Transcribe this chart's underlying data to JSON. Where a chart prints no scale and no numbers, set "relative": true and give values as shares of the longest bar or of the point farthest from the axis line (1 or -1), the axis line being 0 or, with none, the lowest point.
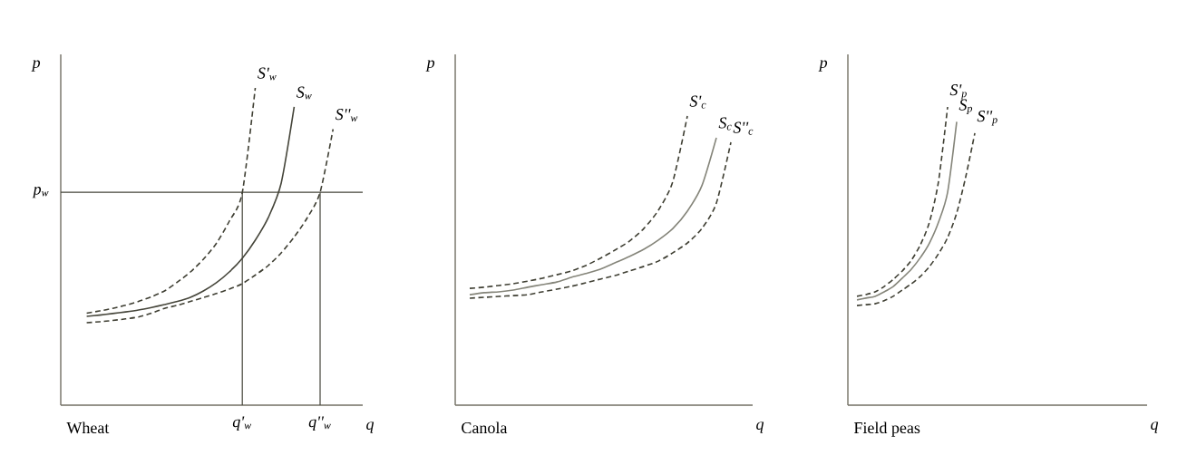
{
  "chart_data": [
    {
      "type": "line",
      "title": "Wheat",
      "xlabel": "q",
      "ylabel": "p",
      "relative": true,
      "categories": [
        null,
        null,
        null,
        null,
        null,
        null,
        null,
        null,
        null,
        null,
        null,
        null,
        null,
        null,
        "q'$_{w}$",
        null,
        null,
        null,
        null,
        null,
        "q''$_{w}$",
        null,
        null,
        null
      ],
      "series": [
        {
          "name": "S'$_{w}$",
          "color": "#3f3f33",
          "line_style": "dashed",
          "values": [
            null,
            null,
            0.29,
            0.297,
            0.305,
            0.315,
            0.327,
            0.342,
            0.36,
            0.388,
            0.42,
            0.46,
            0.51,
            0.58,
            0.67,
            1.0,
            null,
            null,
            null,
            null,
            null,
            null,
            null,
            null
          ]
        },
        {
          "name": "S$_{w}$",
          "color": "#45453a",
          "line_style": "solid",
          "values": [
            null,
            null,
            0.28,
            0.284,
            0.289,
            0.294,
            0.3,
            0.308,
            0.317,
            0.327,
            0.34,
            0.36,
            0.386,
            0.42,
            0.463,
            0.52,
            0.591,
            0.7,
            0.94,
            null,
            null,
            null,
            null,
            null
          ]
        },
        {
          "name": "S''$_{w}$",
          "color": "#3f3f33",
          "line_style": "dashed",
          "values": [
            null,
            null,
            0.26,
            0.263,
            0.267,
            0.272,
            0.278,
            0.29,
            0.305,
            0.315,
            0.327,
            0.339,
            0.352,
            0.366,
            0.383,
            0.41,
            0.44,
            0.48,
            0.53,
            0.59,
            0.671,
            0.87,
            null,
            null
          ]
        }
      ],
      "ref_lines": [
        {
          "axis": "y",
          "value": 0.671,
          "label": "p$_{w}$",
          "color": "#45453a"
        }
      ]
    },
    {
      "type": "line",
      "title": "Canola",
      "xlabel": "q",
      "ylabel": "p",
      "relative": true,
      "categories": [
        null,
        null,
        null,
        null,
        null,
        null,
        null,
        null,
        null,
        null,
        null,
        null,
        null,
        null,
        null,
        null,
        null,
        null,
        null,
        null,
        null
      ],
      "series": [
        {
          "name": "S'$_{c}$",
          "color": "#3f3f33",
          "line_style": "dashed",
          "values": [
            null,
            0.404,
            0.408,
            0.414,
            0.42,
            0.429,
            0.439,
            0.451,
            0.464,
            0.483,
            0.508,
            0.536,
            0.567,
            0.611,
            0.674,
            0.774,
            1.0,
            null,
            null,
            null,
            null
          ]
        },
        {
          "name": "S$_{c}$",
          "color": "#85857a",
          "line_style": "solid",
          "values": [
            null,
            0.382,
            0.389,
            0.392,
            0.398,
            0.408,
            0.417,
            0.426,
            0.442,
            0.455,
            0.47,
            0.492,
            0.514,
            0.539,
            0.571,
            0.611,
            0.671,
            0.759,
            0.925,
            null,
            null
          ]
        },
        {
          "name": "S''$_{c}$",
          "color": "#3f3f33",
          "line_style": "dashed",
          "values": [
            null,
            0.37,
            0.373,
            0.376,
            0.379,
            0.382,
            0.392,
            0.401,
            0.411,
            0.423,
            0.436,
            0.448,
            0.464,
            0.48,
            0.498,
            0.527,
            0.561,
            0.611,
            0.699,
            0.909,
            null
          ]
        }
      ]
    },
    {
      "type": "line",
      "title": "Field peas",
      "xlabel": "q",
      "ylabel": "p",
      "relative": true,
      "categories": [
        null,
        null,
        null,
        null,
        null,
        null,
        null,
        null,
        null,
        null,
        null,
        null,
        null,
        null,
        null,
        null,
        null,
        null,
        null,
        null,
        null,
        null,
        null,
        null,
        null,
        null,
        null,
        null,
        null,
        null,
        null,
        null,
        null,
        null
      ],
      "series": [
        {
          "name": "S'$_{p}$",
          "color": "#3f3f33",
          "line_style": "dashed",
          "values": [
            null,
            0.365,
            0.371,
            0.38,
            0.398,
            0.422,
            0.45,
            0.486,
            0.538,
            0.614,
            0.751,
            1.0,
            null,
            null,
            null,
            null,
            null,
            null,
            null,
            null,
            null,
            null,
            null,
            null,
            null,
            null,
            null,
            null,
            null,
            null,
            null,
            null,
            null,
            null
          ]
        },
        {
          "name": "S$_{p}$",
          "color": "#85857a",
          "line_style": "solid",
          "values": [
            null,
            0.353,
            0.359,
            0.365,
            0.38,
            0.398,
            0.426,
            0.456,
            0.495,
            0.544,
            0.614,
            0.714,
            0.95,
            null,
            null,
            null,
            null,
            null,
            null,
            null,
            null,
            null,
            null,
            null,
            null,
            null,
            null,
            null,
            null,
            null,
            null,
            null,
            null,
            null
          ]
        },
        {
          "name": "S''$_{p}$",
          "color": "#3f3f33",
          "line_style": "dashed",
          "values": [
            null,
            0.334,
            0.337,
            0.34,
            0.35,
            0.365,
            0.386,
            0.407,
            0.432,
            0.465,
            0.508,
            0.562,
            0.644,
            0.766,
            0.912,
            null,
            null,
            null,
            null,
            null,
            null,
            null,
            null,
            null,
            null,
            null,
            null,
            null,
            null,
            null,
            null,
            null,
            null,
            null
          ]
        }
      ]
    }
  ]
}
